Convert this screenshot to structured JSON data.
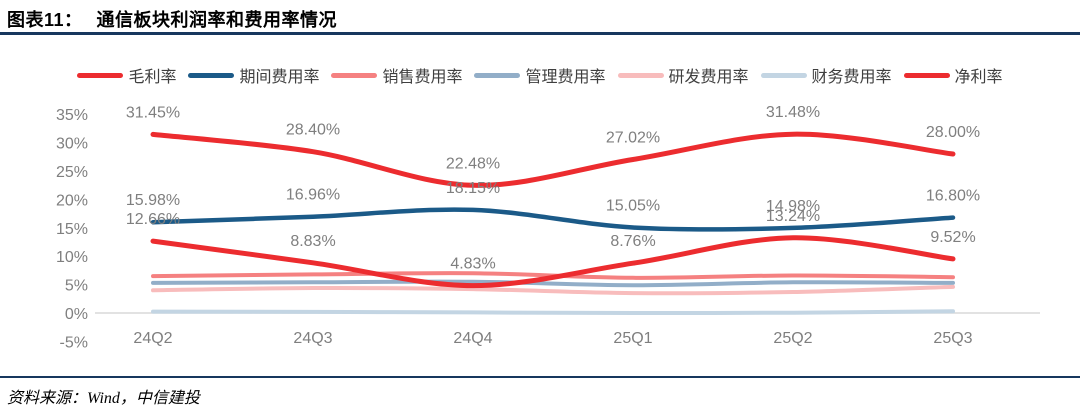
{
  "header": {
    "prefix": "图表11：",
    "title": "通信板块利润率和费用率情况",
    "rule_color": "#17375e"
  },
  "footer": {
    "source": "资料来源：Wind，中信建投",
    "rule_color": "#17375e"
  },
  "chart_data": {
    "type": "line",
    "title": "通信板块利润率和费用率情况",
    "categories": [
      "24Q2",
      "24Q3",
      "24Q4",
      "25Q1",
      "25Q2",
      "25Q3"
    ],
    "series": [
      {
        "name": "毛利率",
        "color": "#ec2c2f",
        "stroke_width": 5,
        "labeled": true,
        "values": [
          31.45,
          28.4,
          22.48,
          27.02,
          31.48,
          28.0
        ],
        "labels": [
          "31.45%",
          "28.40%",
          "22.48%",
          "27.02%",
          "31.48%",
          "28.00%"
        ]
      },
      {
        "name": "期间费用率",
        "color": "#1b5a88",
        "stroke_width": 4.5,
        "labeled": true,
        "values": [
          15.98,
          16.96,
          18.15,
          15.05,
          14.98,
          16.8
        ],
        "labels": [
          "15.98%",
          "16.96%",
          "18.15%",
          "15.05%",
          "14.98%",
          "16.80%"
        ]
      },
      {
        "name": "销售费用率",
        "color": "#f58181",
        "stroke_width": 4,
        "labeled": false,
        "values": [
          6.5,
          6.8,
          7.0,
          6.2,
          6.6,
          6.3
        ]
      },
      {
        "name": "管理费用率",
        "color": "#92aec8",
        "stroke_width": 4,
        "labeled": false,
        "values": [
          5.3,
          5.4,
          5.5,
          4.9,
          5.4,
          5.3
        ]
      },
      {
        "name": "研发费用率",
        "color": "#f8bcbc",
        "stroke_width": 4,
        "labeled": false,
        "values": [
          4.0,
          4.4,
          4.2,
          3.5,
          3.7,
          4.6
        ]
      },
      {
        "name": "财务费用率",
        "color": "#c3d5e3",
        "stroke_width": 4,
        "labeled": false,
        "values": [
          0.25,
          0.2,
          0.1,
          0.0,
          0.05,
          0.3
        ]
      },
      {
        "name": "净利率",
        "color": "#ec2c2f",
        "stroke_width": 5,
        "labeled": true,
        "values": [
          12.66,
          8.83,
          4.83,
          8.76,
          13.24,
          9.52
        ],
        "labels": [
          "12.66%",
          "8.83%",
          "4.83%",
          "8.76%",
          "13.24%",
          "9.52%"
        ]
      }
    ],
    "yticks": [
      "35%",
      "30%",
      "25%",
      "20%",
      "15%",
      "10%",
      "5%",
      "0%",
      "-5%"
    ],
    "ylim": [
      -5,
      35
    ],
    "grid": "zero-line-only",
    "legend_position": "top",
    "axis_text_color": "#7f7f7f",
    "label_text_color": "#7f7f7f",
    "zero_line_color": "#d9d9d9"
  }
}
